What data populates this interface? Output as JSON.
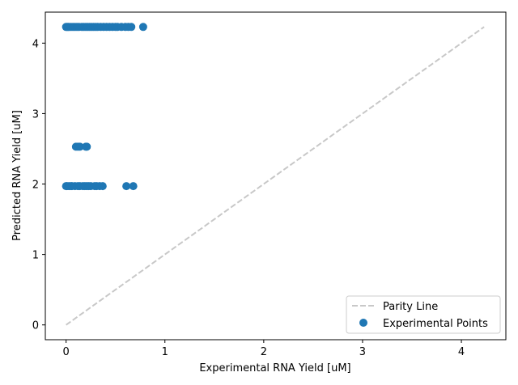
{
  "chart_data": {
    "type": "scatter",
    "xlabel": "Experimental RNA Yield [uM]",
    "ylabel": "Predicted RNA Yield [uM]",
    "xlim": [
      -0.21,
      4.45
    ],
    "ylim": [
      -0.21,
      4.44
    ],
    "xticks": [
      0,
      1,
      2,
      3,
      4
    ],
    "yticks": [
      0,
      1,
      2,
      3,
      4
    ],
    "grid": false,
    "legend_position": "lower-right",
    "parity_line": {
      "name": "Parity Line",
      "x": [
        0,
        4.23
      ],
      "y": [
        0,
        4.23
      ],
      "color": "#c8c8c8",
      "dash": true
    },
    "series": [
      {
        "name": "Experimental Points",
        "color": "#1f77b4",
        "x": [
          0.0,
          0.01,
          0.02,
          0.03,
          0.05,
          0.07,
          0.09,
          0.11,
          0.13,
          0.16,
          0.18,
          0.2,
          0.22,
          0.24,
          0.26,
          0.28,
          0.3,
          0.32,
          0.35,
          0.38,
          0.41,
          0.44,
          0.47,
          0.5,
          0.52,
          0.56,
          0.6,
          0.63,
          0.66,
          0.78,
          0.1,
          0.12,
          0.14,
          0.2,
          0.21,
          0.0,
          0.01,
          0.03,
          0.05,
          0.06,
          0.09,
          0.12,
          0.14,
          0.17,
          0.19,
          0.21,
          0.23,
          0.25,
          0.29,
          0.31,
          0.34,
          0.37,
          0.61,
          0.68
        ],
        "y": [
          4.23,
          4.23,
          4.23,
          4.23,
          4.23,
          4.23,
          4.23,
          4.23,
          4.23,
          4.23,
          4.23,
          4.23,
          4.23,
          4.23,
          4.23,
          4.23,
          4.23,
          4.23,
          4.23,
          4.23,
          4.23,
          4.23,
          4.23,
          4.23,
          4.23,
          4.23,
          4.23,
          4.23,
          4.23,
          4.23,
          2.53,
          2.53,
          2.53,
          2.53,
          2.53,
          1.97,
          1.97,
          1.97,
          1.97,
          1.97,
          1.97,
          1.97,
          1.97,
          1.97,
          1.97,
          1.97,
          1.97,
          1.97,
          1.97,
          1.97,
          1.97,
          1.97,
          1.97,
          1.97
        ]
      }
    ]
  }
}
